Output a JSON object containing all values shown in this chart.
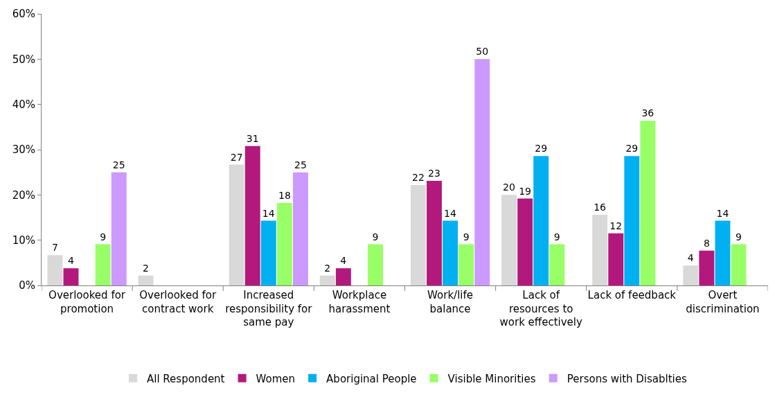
{
  "chart_data": {
    "type": "bar",
    "categories": [
      "Overlooked for\npromotion",
      "Overlooked for\ncontract work",
      "Increased\nresponsibility for\nsame pay",
      "Workplace\nharassment",
      "Work/life\nbalance",
      "Lack of\nresources to\nwork effectively",
      "Lack of feedback",
      "Overt\ndiscrimination"
    ],
    "series": [
      {
        "name": "All Respondent",
        "color": "#d9d9d9",
        "values": [
          6.7,
          2.2,
          26.7,
          2.2,
          22.2,
          20,
          15.6,
          4.4
        ],
        "value_labels": [
          "7",
          "2",
          "27",
          "2",
          "22",
          "20",
          "16",
          "4"
        ]
      },
      {
        "name": "Women",
        "color": "#b3197c",
        "values": [
          3.8,
          null,
          30.8,
          3.8,
          23.1,
          19.2,
          11.5,
          7.7
        ],
        "value_labels": [
          "4",
          null,
          "31",
          "4",
          "23",
          "19",
          "12",
          "8"
        ]
      },
      {
        "name": "Aboriginal People",
        "color": "#00b0f0",
        "values": [
          null,
          null,
          14.3,
          null,
          14.3,
          28.6,
          28.6,
          14.3
        ],
        "value_labels": [
          null,
          null,
          "14",
          null,
          "14",
          "29",
          "29",
          "14"
        ]
      },
      {
        "name": "Visible Minorities",
        "color": "#99ff66",
        "values": [
          9.1,
          null,
          18.2,
          9.1,
          9.1,
          9.1,
          36.4,
          9.1
        ],
        "value_labels": [
          "9",
          null,
          "18",
          "9",
          "9",
          "9",
          "36",
          "9"
        ]
      },
      {
        "name": "Persons with Disablties",
        "color": "#cc99ff",
        "values": [
          25,
          null,
          25,
          null,
          50,
          null,
          null,
          null
        ],
        "value_labels": [
          "25",
          null,
          "25",
          null,
          "50",
          null,
          null,
          null
        ]
      }
    ],
    "ylim": [
      0,
      60
    ],
    "yticks": [
      {
        "value": 0,
        "label": "0%"
      },
      {
        "value": 10,
        "label": "10%"
      },
      {
        "value": 20,
        "label": "20%"
      },
      {
        "value": 30,
        "label": "30%"
      },
      {
        "value": 40,
        "label": "40%"
      },
      {
        "value": 50,
        "label": "50%"
      },
      {
        "value": 60,
        "label": "60%"
      }
    ],
    "grid": false,
    "legend": "bottom"
  }
}
